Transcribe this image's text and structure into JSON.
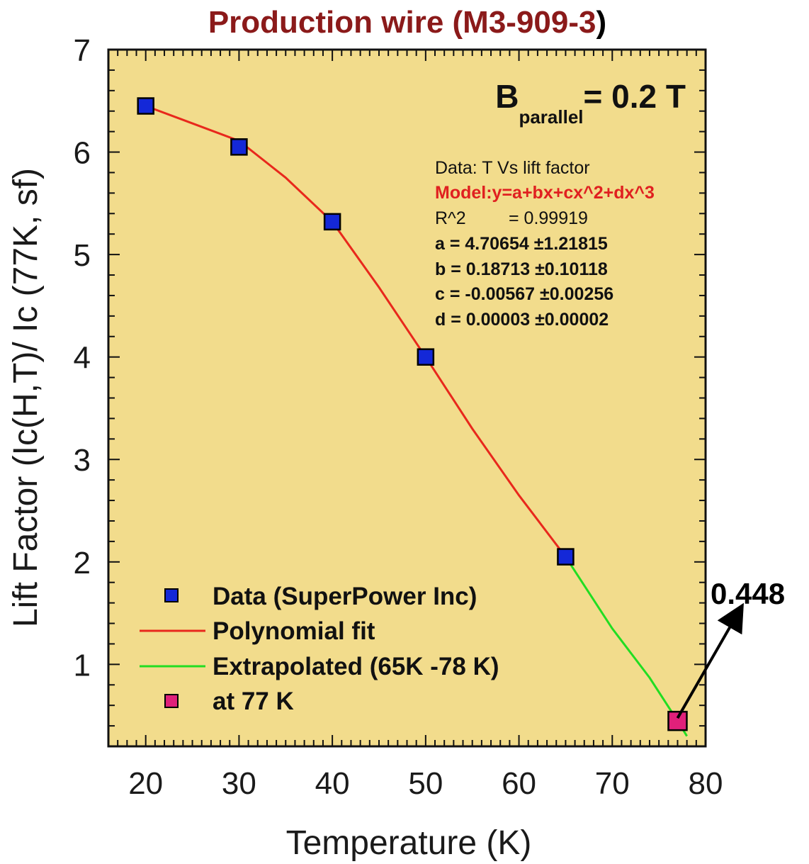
{
  "colors": {
    "plot_bg": "#f2dc8c",
    "title_red": "#8b1a1a",
    "marker_blue": "#1428d8",
    "marker_pink": "#e0207a",
    "fit_red": "#e8281c",
    "extrap_green": "#22dd22",
    "model_red": "#e02020"
  },
  "chart_data": {
    "type": "line",
    "title": "Production wire (M3-909-3",
    "title_paren": ")",
    "xlabel": "Temperature (K)",
    "ylabel": "Lift Factor (Ic(H,T)/ Ic (77K, sf)",
    "xlim": [
      16,
      80
    ],
    "ylim": [
      0.2,
      7
    ],
    "xticks": [
      20,
      30,
      40,
      50,
      60,
      70,
      80
    ],
    "xtick_labels": [
      "20",
      "30",
      "40",
      "50",
      "60",
      "70",
      "80"
    ],
    "yticks": [
      1,
      2,
      3,
      4,
      5,
      6,
      7
    ],
    "ytick_labels": [
      "1",
      "2",
      "3",
      "4",
      "5",
      "6",
      "7"
    ],
    "grid": false,
    "legend_position": "bottom-left",
    "series": [
      {
        "name": "Data (SuperPower Inc)",
        "kind": "scatter",
        "marker": "square",
        "color": "#1428d8",
        "x": [
          20,
          30,
          40,
          50,
          65
        ],
        "y": [
          6.45,
          6.05,
          5.32,
          4.0,
          2.05
        ]
      },
      {
        "name": "Polynomial fit",
        "kind": "line",
        "color": "#e8281c",
        "x": [
          20,
          30,
          35,
          40,
          45,
          50,
          55,
          60,
          65
        ],
        "y": [
          6.45,
          6.11,
          5.75,
          5.32,
          4.68,
          4.0,
          3.3,
          2.65,
          2.05
        ]
      },
      {
        "name": "Extrapolated (65K -78 K)",
        "kind": "line",
        "color": "#22dd22",
        "x": [
          65,
          70,
          74,
          77,
          78
        ],
        "y": [
          2.05,
          1.35,
          0.87,
          0.448,
          0.3
        ]
      },
      {
        "name": "at 77 K",
        "kind": "scatter",
        "marker": "square",
        "color": "#e0207a",
        "x": [
          77
        ],
        "y": [
          0.448
        ]
      }
    ],
    "annotation": {
      "text": "0.448",
      "x": 77,
      "y": 0.448
    },
    "field_label": {
      "main": "B",
      "sub": "parallel",
      "value": "= 0.2 T"
    },
    "fit_stats": {
      "data": "Data: T Vs lift factor",
      "model": "Model:y=a+bx+cx^2+dx^3",
      "r2_label": "R^2",
      "r2_value": "=  0.99919",
      "a": "a = 4.70654 ±1.21815",
      "b": "b = 0.18713 ±0.10118",
      "c": "c = -0.00567 ±0.00256",
      "d": "d = 0.00003 ±0.00002"
    }
  }
}
